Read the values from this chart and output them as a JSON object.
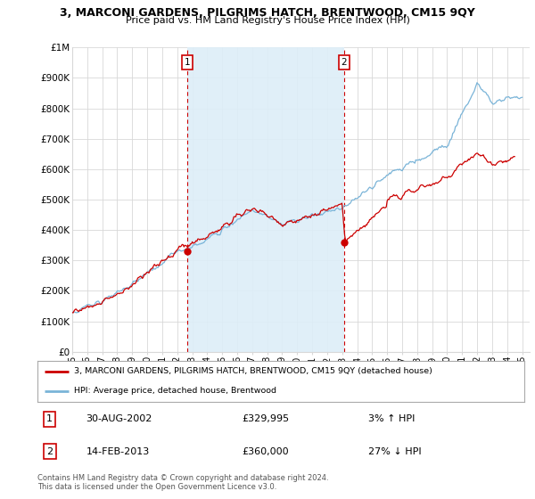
{
  "title": "3, MARCONI GARDENS, PILGRIMS HATCH, BRENTWOOD, CM15 9QY",
  "subtitle": "Price paid vs. HM Land Registry's House Price Index (HPI)",
  "ylabel_ticks": [
    "£0",
    "£100K",
    "£200K",
    "£300K",
    "£400K",
    "£500K",
    "£600K",
    "£700K",
    "£800K",
    "£900K",
    "£1M"
  ],
  "ytick_vals": [
    0,
    100000,
    200000,
    300000,
    400000,
    500000,
    600000,
    700000,
    800000,
    900000,
    1000000
  ],
  "ylim": [
    0,
    1000000
  ],
  "hpi_color": "#7ab4d8",
  "hpi_fill_color": "#ddeef8",
  "price_color": "#cc0000",
  "sale1_date_x": 2002.67,
  "sale1_price": 329995,
  "sale2_date_x": 2013.12,
  "sale2_price": 360000,
  "legend_line1": "3, MARCONI GARDENS, PILGRIMS HATCH, BRENTWOOD, CM15 9QY (detached house)",
  "legend_line2": "HPI: Average price, detached house, Brentwood",
  "table_row1": [
    "1",
    "30-AUG-2002",
    "£329,995",
    "3% ↑ HPI"
  ],
  "table_row2": [
    "2",
    "14-FEB-2013",
    "£360,000",
    "27% ↓ HPI"
  ],
  "footer": "Contains HM Land Registry data © Crown copyright and database right 2024.\nThis data is licensed under the Open Government Licence v3.0.",
  "xmin": 1995,
  "xmax": 2025.5,
  "background_color": "#ffffff",
  "grid_color": "#d8d8d8"
}
